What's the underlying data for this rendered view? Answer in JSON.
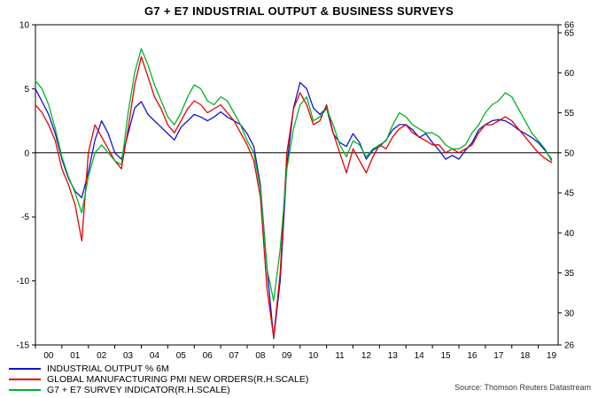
{
  "title": "G7 + E7 INDUSTRIAL OUTPUT & BUSINESS SURVEYS",
  "source": "Source: Thomson Reuters Datastream",
  "legend": [
    {
      "label": "INDUSTRIAL OUTPUT % 6M",
      "color": "#1414c8"
    },
    {
      "label": "GLOBAL MANUFACTURING PMI NEW ORDERS(R.H.SCALE)",
      "color": "#e60000"
    },
    {
      "label": "G7 + E7 SURVEY INDICATOR(R.H.SCALE)",
      "color": "#00b428"
    }
  ],
  "chart_data": {
    "type": "line",
    "title": "G7 + E7 INDUSTRIAL OUTPUT & BUSINESS SURVEYS",
    "x_start": 2000.0,
    "points_per_year": 4,
    "x_domain": [
      2000,
      2019.75
    ],
    "x_tick_labels": [
      "00",
      "01",
      "02",
      "03",
      "04",
      "05",
      "06",
      "07",
      "08",
      "09",
      "10",
      "11",
      "12",
      "13",
      "14",
      "15",
      "16",
      "17",
      "18",
      "19"
    ],
    "left_axis": {
      "min": -15,
      "max": 10,
      "ticks": [
        -15,
        -10,
        -5,
        0,
        5,
        10
      ]
    },
    "right_axis": {
      "min": 26,
      "max": 66,
      "ticks": [
        26,
        30,
        35,
        40,
        45,
        50,
        55,
        60,
        65,
        66
      ]
    },
    "grid": false,
    "legend_position": "bottom-left",
    "series": [
      {
        "name": "INDUSTRIAL OUTPUT % 6M",
        "axis": "left",
        "color": "#1414c8",
        "values": [
          5,
          4,
          3,
          1.5,
          -0.5,
          -2,
          -3,
          -3.5,
          -1.5,
          1,
          2.5,
          1.5,
          0,
          -0.5,
          1.5,
          3.5,
          4,
          3,
          2.5,
          2,
          1.5,
          1,
          2,
          2.5,
          3,
          2.8,
          2.5,
          2.8,
          3.2,
          2.8,
          2.5,
          2.2,
          1.5,
          0.5,
          -2.5,
          -9,
          -14.5,
          -10,
          -1,
          3.5,
          5.5,
          5,
          3.5,
          3,
          3.5,
          1.5,
          0.8,
          0.5,
          1.5,
          0.8,
          -0.5,
          0.2,
          0.5,
          1,
          1.8,
          2.2,
          2.2,
          1.8,
          1.2,
          1.5,
          0.8,
          0.2,
          -0.5,
          -0.2,
          -0.5,
          0.2,
          0.8,
          1.8,
          2.2,
          2.5,
          2.6,
          2.5,
          2.2,
          1.8,
          1.5,
          1.2,
          0.8,
          0.2,
          -0.5
        ]
      },
      {
        "name": "GLOBAL MANUFACTURING PMI NEW ORDERS(R.H.SCALE)",
        "axis": "right",
        "color": "#e60000",
        "values": [
          56,
          55,
          53.5,
          51.5,
          48,
          46,
          43.5,
          39,
          50,
          53.5,
          52,
          50.5,
          49,
          48,
          53,
          58.5,
          62,
          59.5,
          57,
          55.5,
          53.5,
          52.5,
          54,
          55.5,
          56.5,
          56,
          55,
          55.5,
          56,
          55,
          54,
          52.5,
          51,
          49,
          44.5,
          33,
          27,
          35,
          50,
          55.5,
          57.5,
          56,
          53.5,
          54,
          56,
          52.5,
          50,
          47.5,
          50.5,
          49,
          47.5,
          49.5,
          51,
          50.5,
          52,
          53,
          53.5,
          52.5,
          52,
          51.5,
          51,
          51,
          50,
          50.5,
          50,
          50.5,
          51,
          52.5,
          53.5,
          53.5,
          54,
          54.5,
          54,
          53,
          52,
          51,
          50,
          49.3,
          48.8
        ]
      },
      {
        "name": "G7 + E7 SURVEY INDICATOR(R.H.SCALE)",
        "axis": "right",
        "color": "#00b428",
        "values": [
          59,
          58,
          56,
          53,
          49.5,
          47,
          45,
          42.5,
          47,
          50,
          51,
          50,
          49,
          48.5,
          55,
          60,
          63,
          61,
          58.5,
          56.5,
          54.5,
          53.5,
          55,
          57,
          58.5,
          58,
          56.5,
          56,
          57,
          56.5,
          55,
          53.5,
          51.5,
          50,
          45.5,
          35.5,
          31.5,
          38,
          48,
          53,
          56,
          57,
          54,
          54.5,
          55.5,
          53.5,
          51,
          49.5,
          51.5,
          51,
          49.5,
          50.5,
          51,
          51.5,
          53.5,
          55,
          54.5,
          53.5,
          53,
          52.5,
          52.5,
          52,
          51,
          50.5,
          50.5,
          51,
          52.5,
          53.5,
          55,
          56,
          56.5,
          57.5,
          57,
          55.5,
          54,
          52.5,
          51.5,
          50.5,
          49
        ]
      }
    ]
  }
}
